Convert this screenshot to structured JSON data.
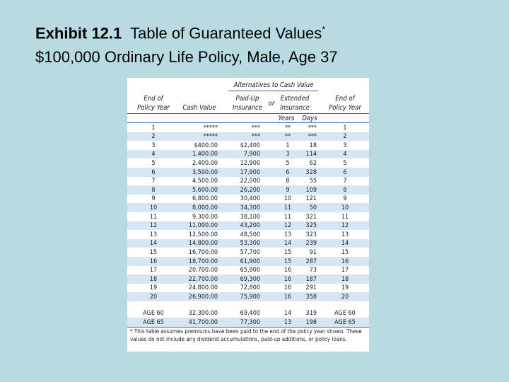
{
  "header": {
    "title_bold": "Exhibit 12.1",
    "title": "Table of Guaranteed Values",
    "title_mark": "*",
    "subtitle": "$100,000 Ordinary Life Policy, Male, Age 37"
  },
  "table": {
    "group_header": "Alternatives to Cash Value",
    "col_headers": [
      [
        "End of",
        "Policy Year"
      ],
      [
        "Cash Value"
      ],
      [
        "Paid-Up",
        "Insurance"
      ],
      [
        "Extended",
        "Insurance"
      ],
      [
        "End of",
        "Policy Year"
      ]
    ],
    "or": "or",
    "sub_headers": [
      "Years",
      "Days"
    ],
    "rows": [
      [
        "1",
        "*****",
        "***",
        "**",
        "***",
        "1"
      ],
      [
        "2",
        "*****",
        "***",
        "**",
        "***",
        "2"
      ],
      [
        "3",
        "$400.00",
        "$2,400",
        "1",
        "18",
        "3"
      ],
      [
        "4",
        "1,400.00",
        "7,900",
        "3",
        "114",
        "4"
      ],
      [
        "5",
        "2,400.00",
        "12,900",
        "5",
        "62",
        "5"
      ],
      [
        "6",
        "3,500.00",
        "17,900",
        "6",
        "328",
        "6"
      ],
      [
        "7",
        "4,500.00",
        "22,000",
        "8",
        "55",
        "7"
      ],
      [
        "8",
        "5,600.00",
        "26,200",
        "9",
        "109",
        "8"
      ],
      [
        "9",
        "6,800.00",
        "30,400",
        "10",
        "121",
        "9"
      ],
      [
        "10",
        "8,000.00",
        "34,300",
        "11",
        "50",
        "10"
      ],
      [
        "11",
        "9,300.00",
        "38,100",
        "11",
        "321",
        "11"
      ],
      [
        "12",
        "11,000.00",
        "43,200",
        "12",
        "325",
        "12"
      ],
      [
        "13",
        "12,500.00",
        "48,500",
        "13",
        "323",
        "13"
      ],
      [
        "14",
        "14,800.00",
        "53,300",
        "14",
        "239",
        "14"
      ],
      [
        "15",
        "16,700.00",
        "57,700",
        "15",
        "91",
        "15"
      ],
      [
        "16",
        "18,700.00",
        "61,900",
        "15",
        "287",
        "16"
      ],
      [
        "17",
        "20,700.00",
        "65,800",
        "16",
        "73",
        "17"
      ],
      [
        "18",
        "22,700.00",
        "69,300",
        "16",
        "187",
        "18"
      ],
      [
        "19",
        "24,800.00",
        "72,800",
        "16",
        "291",
        "19"
      ],
      [
        "20",
        "26,900.00",
        "75,900",
        "16",
        "358",
        "20"
      ]
    ],
    "age_rows": [
      [
        "AGE 60",
        "32,300.00",
        "69,400",
        "14",
        "319",
        "AGE 60"
      ],
      [
        "AGE 65",
        "41,700.00",
        "77,300",
        "13",
        "198",
        "AGE 65"
      ]
    ],
    "footnote": "* This table assumes premiums have been paid to the end of the policy year shown. These values do not include any dividend accumulations, paid-up additions, or policy loans."
  }
}
